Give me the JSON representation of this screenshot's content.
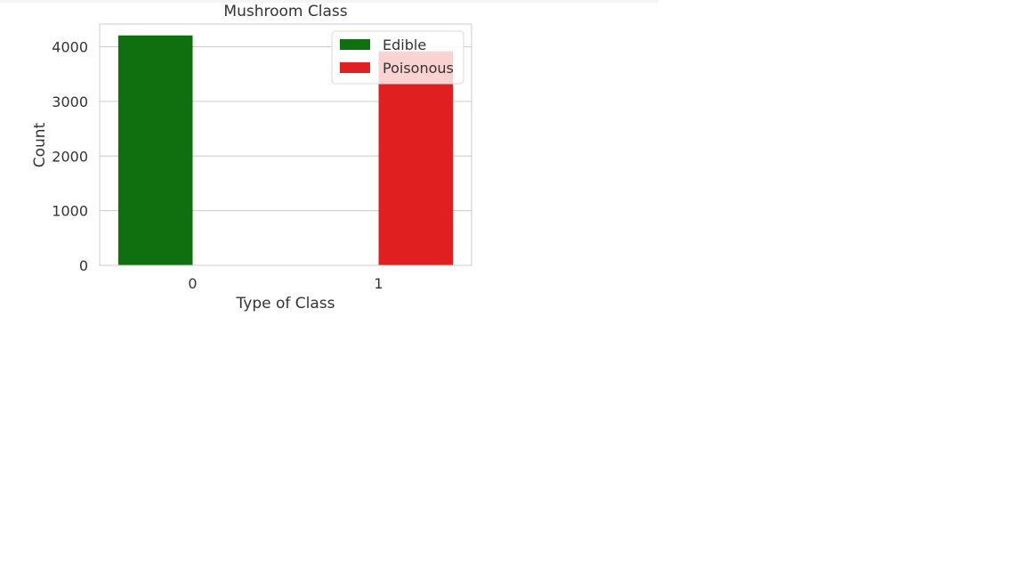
{
  "chart_data": {
    "type": "bar",
    "title": "Mushroom Class",
    "xlabel": "Type of Class",
    "ylabel": "Count",
    "categories": [
      "0",
      "1"
    ],
    "yticks": [
      0,
      1000,
      2000,
      3000,
      4000
    ],
    "ylim": [
      0,
      4416
    ],
    "grid": true,
    "legend_position": "top-right",
    "series": [
      {
        "name": "Edible",
        "color": "#107010",
        "values": [
          4208,
          0
        ]
      },
      {
        "name": "Poisonous",
        "color": "#e02020",
        "values": [
          0,
          3916
        ]
      }
    ]
  }
}
